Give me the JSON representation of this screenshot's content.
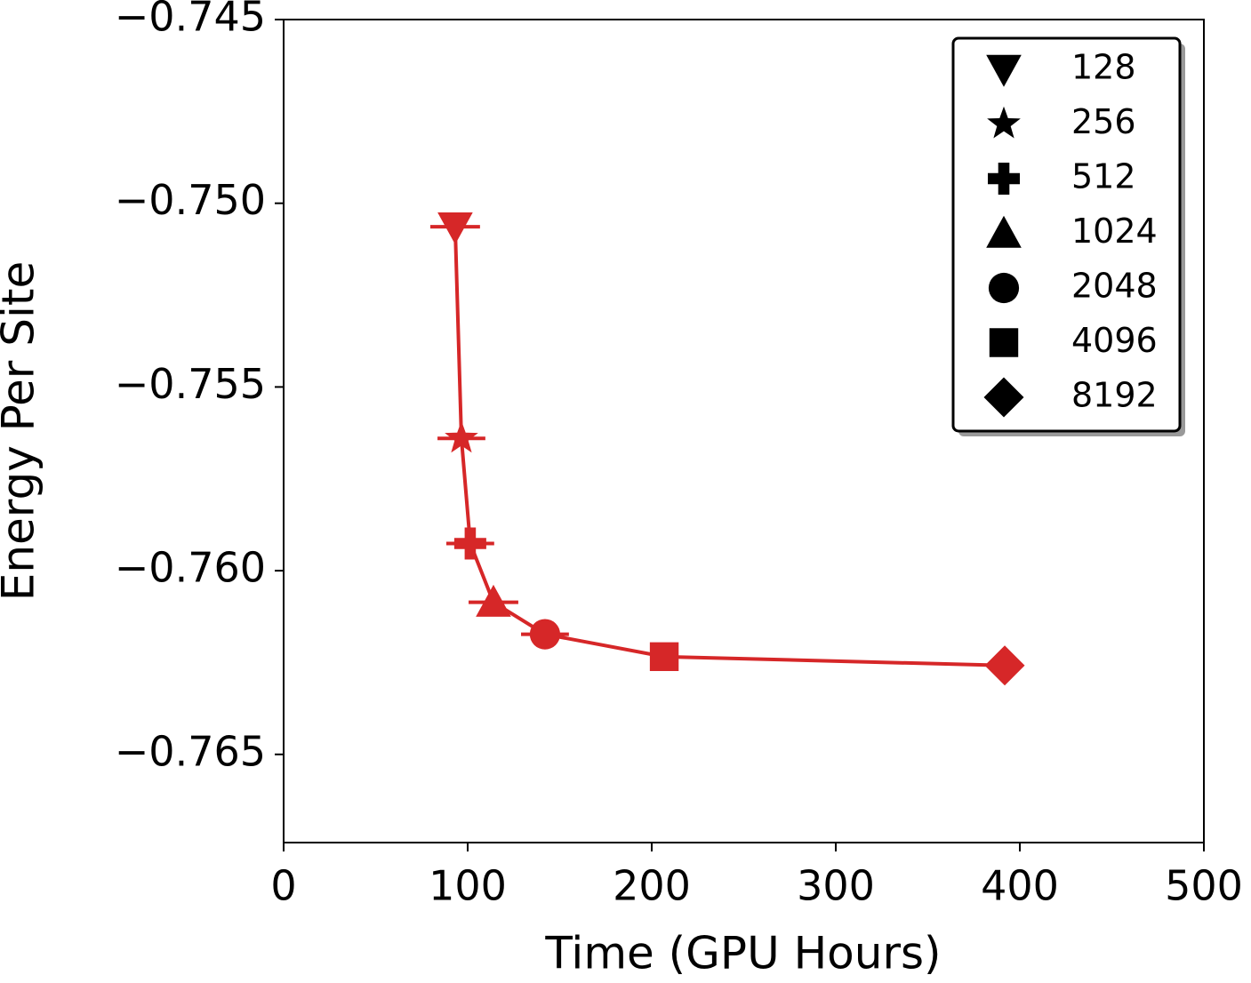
{
  "chart_data": {
    "type": "line",
    "x_label": "Time (GPU Hours)",
    "y_label": "Energy Per Site",
    "x": [
      93.2,
      96.6,
      101.4,
      114,
      142,
      206.8,
      391.8
    ],
    "values": [
      -0.75064,
      -0.7564,
      -0.75926,
      -0.76086,
      -0.76173,
      -0.76234,
      -0.76258
    ],
    "xerr": [
      13.5,
      13,
      13,
      13.5,
      13,
      null,
      null
    ],
    "color": "#d62728",
    "markers": [
      "triangle-down",
      "star",
      "plus",
      "triangle-up",
      "circle",
      "square",
      "diamond"
    ],
    "legend_labels": [
      "128",
      "256",
      "512",
      "1024",
      "2048",
      "4096",
      "8192"
    ],
    "legend_color": "#000000",
    "legend_position": "upper-right",
    "xlim": [
      0,
      500
    ],
    "xticks": [
      0,
      100,
      200,
      300,
      400,
      500
    ],
    "ylim": [
      -0.7674,
      -0.745
    ],
    "yticks": [
      {
        "value": -0.765,
        "label": "−0.765"
      },
      {
        "value": -0.76,
        "label": "−0.760"
      },
      {
        "value": -0.755,
        "label": "−0.755"
      },
      {
        "value": -0.75,
        "label": "−0.750"
      },
      {
        "value": -0.745,
        "label": "−0.745"
      }
    ]
  }
}
